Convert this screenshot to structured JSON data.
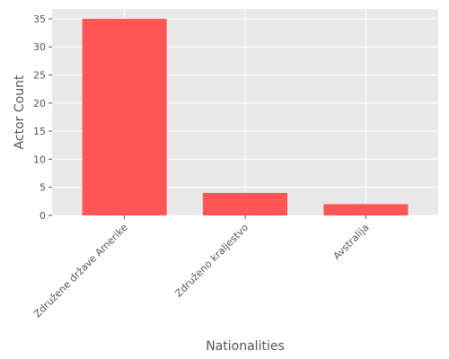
{
  "chart_data": {
    "type": "bar",
    "title": "",
    "xlabel": "Nationalities",
    "ylabel": "Actor Count",
    "categories": [
      "Združene države Amerike",
      "Združeno kraljestvo",
      "Avstralija"
    ],
    "values": [
      35,
      4,
      2
    ],
    "ylim": [
      0,
      36.75
    ],
    "yticks": [
      0,
      5,
      10,
      15,
      20,
      25,
      30,
      35
    ],
    "grid": true,
    "legend": "none",
    "bar_color": "#ff5555",
    "plot_background": "#e9e9e9",
    "grid_color": "#ffffff",
    "text_color": "#555555"
  }
}
